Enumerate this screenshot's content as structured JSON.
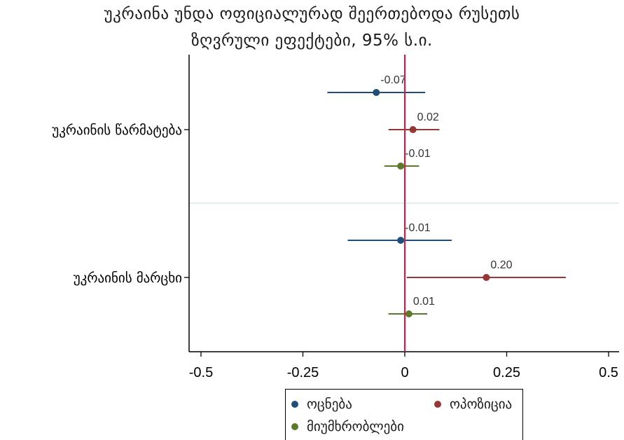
{
  "title_line1": "უკრაინა უნდა ოფიციალურად შეერთებოდა რუსეთს",
  "title_line2": "ზღვრული ეფექტები, 95% ს.ი.",
  "chart_data": {
    "type": "scatter",
    "subtype": "coefficient-plot-with-95ci",
    "orientation": "horizontal",
    "categories": [
      "უკრაინის წარმატება",
      "უკრაინის მარცხი"
    ],
    "xlim": [
      -0.52,
      0.52
    ],
    "xticks": [
      -0.5,
      -0.25,
      0,
      0.25,
      0.5
    ],
    "xtick_labels": [
      "-0.5",
      "-0.25",
      "0",
      "0.25",
      "0.5"
    ],
    "reference_line_x": 0,
    "grid": false,
    "legend_position": "bottom",
    "series": [
      {
        "name": "ოცნება",
        "color": "#1f4e79",
        "values": [
          -0.07,
          -0.01
        ],
        "ci_low": [
          -0.19,
          -0.14
        ],
        "ci_high": [
          0.05,
          0.115
        ],
        "labels": [
          "-0.07",
          "-0.01"
        ]
      },
      {
        "name": "ოპოზიცია",
        "color": "#953735",
        "values": [
          0.02,
          0.2
        ],
        "ci_low": [
          -0.04,
          0.005
        ],
        "ci_high": [
          0.085,
          0.395
        ],
        "labels": [
          "0.02",
          "0.20"
        ]
      },
      {
        "name": "მიუმხრობლები",
        "color": "#5a7a2b",
        "values": [
          -0.01,
          0.01
        ],
        "ci_low": [
          -0.05,
          -0.04
        ],
        "ci_high": [
          0.035,
          0.055
        ],
        "labels": [
          "-0.01",
          "0.01"
        ]
      }
    ],
    "colors": {
      "reference_line": "#d0204a",
      "axis": "#000000",
      "separator": "#dbe8ea"
    }
  }
}
